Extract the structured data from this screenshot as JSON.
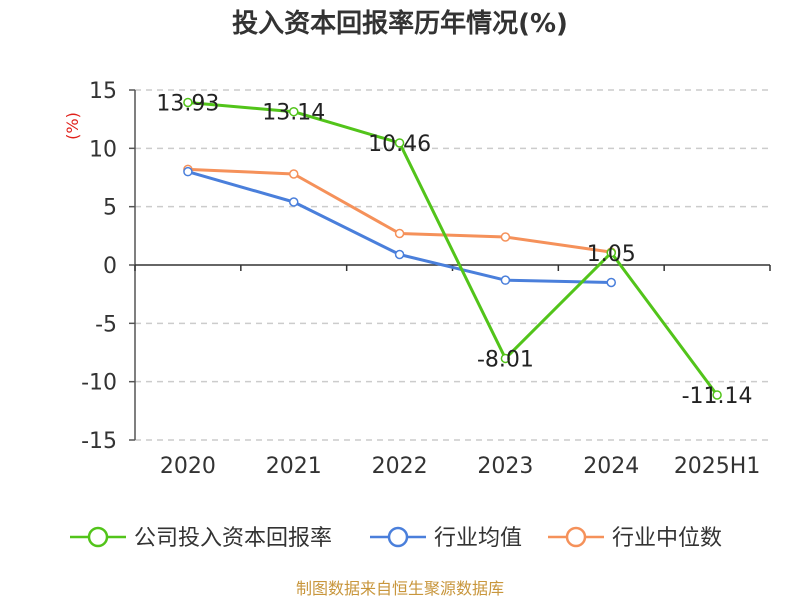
{
  "chart_data": {
    "type": "line",
    "title": "投入资本回报率历年情况(%)",
    "ylabel": "(%)",
    "categories": [
      "2020",
      "2021",
      "2022",
      "2023",
      "2024",
      "2025H1"
    ],
    "ylim": [
      -15,
      15
    ],
    "yticks": [
      15,
      10,
      5,
      0,
      -5,
      -10,
      -15
    ],
    "grid": true,
    "legend_position": "bottom",
    "series": [
      {
        "name": "公司投入资本回报率",
        "color": "#52c41a",
        "labeled": true,
        "values": [
          13.93,
          13.14,
          10.46,
          -8.01,
          1.05,
          -11.14
        ],
        "labels": [
          "13.93",
          "13.14",
          "10.46",
          "-8.01",
          "1.05",
          "-11.14"
        ]
      },
      {
        "name": "行业均值",
        "color": "#4a7fdb",
        "labeled": false,
        "values": [
          8.0,
          5.4,
          0.9,
          -1.3,
          -1.5,
          null
        ]
      },
      {
        "name": "行业中位数",
        "color": "#f5915a",
        "labeled": false,
        "values": [
          8.2,
          7.8,
          2.7,
          2.4,
          1.1,
          null
        ]
      }
    ]
  },
  "ylabel_color": "#e0201a",
  "source_text": "制图数据来自恒生聚源数据库",
  "source_color": "#c8963c"
}
